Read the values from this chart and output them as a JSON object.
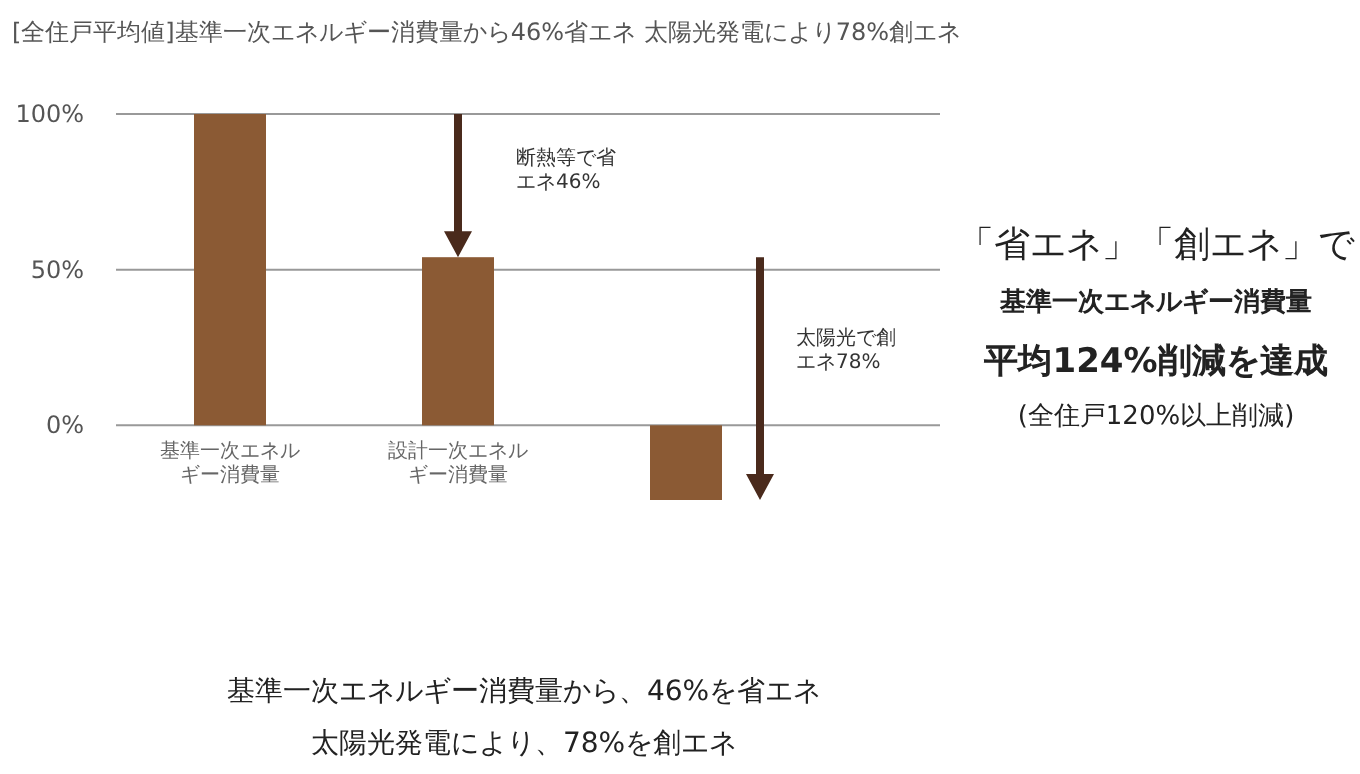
{
  "chart_data": {
    "type": "bar",
    "title": "[全住戸平均値]基準一次エネルギー消費量から46%省エネ 太陽光発電により78%創エネ",
    "categories": [
      "基準一次エネルギー消費量",
      "設計一次エネルギー消費量",
      null
    ],
    "values": [
      100,
      54,
      -24
    ],
    "color": "#8b5a34",
    "ylim": [
      -24,
      100
    ],
    "yticks": [
      {
        "value": 0,
        "label": "0%"
      },
      {
        "value": 50,
        "label": "50%"
      },
      {
        "value": 100,
        "label": "100%"
      }
    ],
    "grid": "y",
    "annotations": [
      "断熱等で省エネ46%",
      "太陽光で創エネ78%",
      "「省エネ」「創エネ」で",
      "基準一次エネルギー消費量",
      "平均124%削減を達成",
      "(全住戸120%以上削減)",
      "基準一次エネルギー消費量から、46%を省エネ",
      "太陽光発電により、78%を創エネ"
    ]
  }
}
